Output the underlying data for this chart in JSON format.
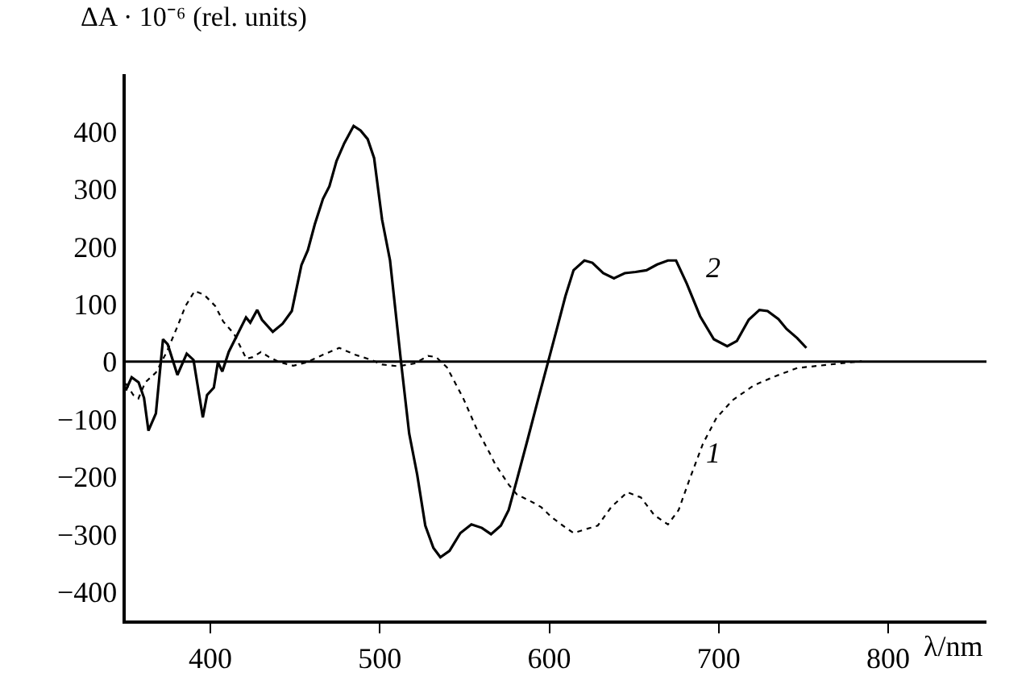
{
  "chart_data": {
    "type": "line",
    "ylabel": "ΔA · 10⁻⁶ (rel. units)",
    "xlabel": "λ/nm",
    "xlim": [
      350,
      858
    ],
    "ylim": [
      -450,
      500
    ],
    "xticks": [
      400,
      500,
      600,
      700,
      800
    ],
    "yticks": [
      {
        "value": -400,
        "label": "−400"
      },
      {
        "value": -300,
        "label": "−300"
      },
      {
        "value": -200,
        "label": "−200"
      },
      {
        "value": -100,
        "label": "−100"
      },
      0,
      100,
      200,
      300,
      400
    ],
    "marker": "none",
    "ref_lines": [
      {
        "axis": "y",
        "value": 0,
        "color": "#000000"
      }
    ],
    "annotations": [
      "2",
      "1"
    ],
    "series": [
      {
        "color": "#000000",
        "line_style": "dotted",
        "x": [
          350,
          354.5,
          357.5,
          361.5,
          367.8,
          374.2,
          380.5,
          385.3,
          390.7,
          396.4,
          402.8,
          407.5,
          414,
          421.2,
          425,
          429.8,
          434.6,
          440.9,
          448.9,
          456.9,
          466.4,
          476,
          485.5,
          495,
          501.4,
          511,
          520.5,
          528.4,
          533.2,
          539.6,
          549.1,
          557,
          565,
          568,
          576.1,
          580.9,
          590.5,
          595.2,
          601.6,
          608,
          614.3,
          620.7,
          628.6,
          636.5,
          646,
          654,
          662,
          670,
          676.3,
          682.7,
          690.6,
          698.6,
          708.1,
          720.8,
          733.6,
          746.3,
          765.3,
          784.4
        ],
        "values": [
          -38,
          -58,
          -64,
          -36,
          -19,
          17,
          61,
          97,
          123,
          116,
          97,
          70,
          48,
          5,
          8,
          17,
          8,
          -1,
          -7,
          -1,
          12,
          24,
          12,
          3,
          -5,
          -8,
          -3,
          10,
          8,
          -10,
          -63,
          -116,
          -160,
          -178,
          -214,
          -231,
          -245,
          -253,
          -271,
          -285,
          -298,
          -292,
          -285,
          -253,
          -227,
          -236,
          -267,
          -283,
          -258,
          -205,
          -143,
          -98,
          -67,
          -41,
          -25,
          -11,
          -5,
          1
        ]
      },
      {
        "color": "#000000",
        "line_style": "solid",
        "x": [
          350,
          353.5,
          357.6,
          360.8,
          363.4,
          367.8,
          372,
          374.8,
          380.5,
          386,
          390,
          395.5,
          398,
          402,
          404.4,
          407,
          410.8,
          421,
          423.5,
          427.6,
          430.4,
          436.8,
          442.6,
          448,
          453.7,
          457.5,
          461.6,
          466.4,
          470.2,
          474.4,
          479,
          484.5,
          488.6,
          492.8,
          496.6,
          501.3,
          506,
          512.5,
          517.3,
          522,
          526.8,
          531.6,
          535.7,
          541.1,
          547.5,
          554,
          560.2,
          565.6,
          571.4,
          576,
          580.9,
          587.3,
          593.6,
          599.3,
          604.8,
          609.5,
          614.3,
          620.7,
          625.4,
          631.8,
          638.2,
          644.5,
          650.9,
          657.3,
          663.6,
          670,
          674.8,
          681.1,
          689,
          697.1,
          705,
          710.7,
          717.7,
          724,
          728.8,
          735.2,
          740,
          746.3,
          751.7
        ],
        "values": [
          -50,
          -27,
          -36,
          -63,
          -120,
          -90,
          39,
          30,
          -23,
          14,
          3,
          -97,
          -58,
          -45,
          -1,
          -17,
          17,
          77,
          68,
          90,
          73,
          52,
          66,
          88,
          168,
          194,
          239,
          283,
          305,
          349,
          380,
          410,
          402,
          387,
          354,
          247,
          176,
          -1,
          -125,
          -196,
          -285,
          -324,
          -340,
          -329,
          -298,
          -283,
          -289,
          -300,
          -285,
          -258,
          -205,
          -134,
          -63,
          0,
          61,
          114,
          159,
          176,
          172,
          154,
          145,
          154,
          156,
          159,
          169,
          176,
          176,
          136,
          79,
          39,
          27,
          36,
          73,
          90,
          88,
          74,
          57,
          41,
          24
        ]
      }
    ]
  }
}
